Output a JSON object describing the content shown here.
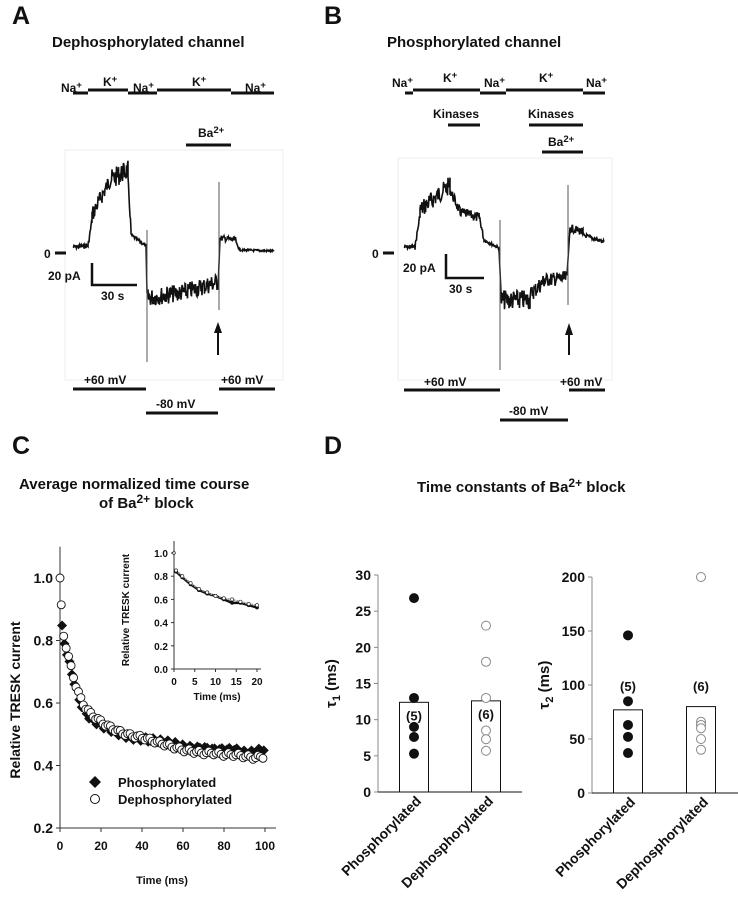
{
  "panels": {
    "A": {
      "letter": "A",
      "title": "Dephosphorylated channel",
      "solutions": [
        "Na+",
        "K+",
        "Na+",
        "K+",
        "Na+"
      ],
      "blocker": "Ba2+",
      "zero_label": "0",
      "scale_current": "20 pA",
      "scale_time": "30 s",
      "voltages": [
        "+60 mV",
        "-80 mV",
        "+60 mV"
      ]
    },
    "B": {
      "letter": "B",
      "title": "Phosphorylated channel",
      "solutions": [
        "Na+",
        "K+",
        "Na+",
        "K+",
        "Na+"
      ],
      "kinases": [
        "Kinases",
        "Kinases"
      ],
      "blocker": "Ba2+",
      "zero_label": "0",
      "scale_current": "20 pA",
      "scale_time": "30 s",
      "voltages": [
        "+60 mV",
        "-80 mV",
        "+60 mV"
      ]
    },
    "C": {
      "letter": "C"
    },
    "D": {
      "letter": "D",
      "title": "Time constants of Ba2+ block"
    }
  },
  "chart_data": [
    {
      "id": "C-main",
      "type": "scatter",
      "title": "Average normalized time course of Ba2+ block",
      "xlabel": "Time (ms)",
      "ylabel": "Relative TRESK current",
      "xlim": [
        0,
        100
      ],
      "ylim": [
        0.2,
        1.1
      ],
      "xticks": [
        0,
        20,
        40,
        60,
        80,
        100
      ],
      "yticks": [
        0.2,
        0.4,
        0.6,
        0.8,
        1.0
      ],
      "ytick_labels": [
        "0.2",
        "0.4",
        "0.6",
        "0.8",
        "1.0"
      ],
      "legend": {
        "position": "bottom-left",
        "entries": [
          "Phosphorylated",
          "Dephosphorylated"
        ]
      },
      "series": [
        {
          "name": "Phosphorylated",
          "marker": "filled-diamond",
          "x": [
            0,
            1,
            2,
            4,
            6,
            8,
            10,
            12,
            15,
            20,
            25,
            30,
            35,
            40,
            45,
            50,
            55,
            60,
            65,
            70,
            75,
            80,
            85,
            90,
            95,
            100
          ],
          "y": [
            1.0,
            0.84,
            0.8,
            0.74,
            0.69,
            0.64,
            0.6,
            0.575,
            0.55,
            0.53,
            0.515,
            0.5,
            0.49,
            0.485,
            0.48,
            0.475,
            0.47,
            0.46,
            0.455,
            0.455,
            0.45,
            0.45,
            0.45,
            0.44,
            0.44,
            0.455
          ]
        },
        {
          "name": "Dephosphorylated",
          "marker": "open-circle",
          "x": [
            0,
            1,
            2,
            4,
            6,
            8,
            10,
            12,
            15,
            20,
            25,
            30,
            35,
            40,
            45,
            50,
            55,
            60,
            65,
            70,
            75,
            80,
            85,
            90,
            95,
            100
          ],
          "y": [
            1.0,
            0.85,
            0.81,
            0.75,
            0.7,
            0.65,
            0.615,
            0.59,
            0.565,
            0.54,
            0.52,
            0.505,
            0.495,
            0.49,
            0.48,
            0.47,
            0.46,
            0.45,
            0.445,
            0.44,
            0.44,
            0.435,
            0.435,
            0.43,
            0.425,
            0.43
          ]
        }
      ]
    },
    {
      "id": "C-inset",
      "type": "scatter",
      "xlabel": "Time (ms)",
      "ylabel": "Relative TRESK current",
      "xlim": [
        0,
        20
      ],
      "ylim": [
        0,
        1.0
      ],
      "xticks": [
        0,
        5,
        10,
        15,
        20
      ],
      "yticks": [
        0.0,
        0.2,
        0.4,
        0.6,
        0.8,
        1.0
      ],
      "ytick_labels": [
        "0.0",
        "0.2",
        "0.4",
        "0.6",
        "0.8",
        "1.0"
      ],
      "series": [
        {
          "name": "Phosphorylated",
          "x": [
            0,
            0.5,
            2,
            4,
            6,
            8,
            10,
            12,
            14,
            16,
            18,
            20
          ],
          "y": [
            1.0,
            0.84,
            0.79,
            0.73,
            0.68,
            0.65,
            0.63,
            0.6,
            0.57,
            0.57,
            0.55,
            0.53
          ]
        },
        {
          "name": "Dephosphorylated",
          "x": [
            0,
            0.5,
            2,
            4,
            6,
            8,
            10,
            12,
            14,
            16,
            18,
            20
          ],
          "y": [
            1.0,
            0.85,
            0.8,
            0.74,
            0.69,
            0.66,
            0.63,
            0.61,
            0.6,
            0.58,
            0.56,
            0.55
          ]
        }
      ]
    },
    {
      "id": "D-tau1",
      "type": "bar",
      "ylabel": "τ1 (ms)",
      "ylim": [
        0,
        30
      ],
      "yticks": [
        0,
        5,
        10,
        15,
        20,
        25,
        30
      ],
      "categories": [
        "Phosphorylated",
        "Dephosphorylated"
      ],
      "values": [
        12.4,
        12.6
      ],
      "n_labels": [
        "(5)",
        "(6)"
      ],
      "points": [
        {
          "category": "Phosphorylated",
          "marker": "filled-circle",
          "values": [
            26.8,
            13.0,
            9.0,
            7.6,
            5.3
          ]
        },
        {
          "category": "Dephosphorylated",
          "marker": "open-circle",
          "values": [
            23.0,
            18.0,
            13.0,
            8.5,
            7.3,
            5.7
          ]
        }
      ]
    },
    {
      "id": "D-tau2",
      "type": "bar",
      "ylabel": "τ2 (ms)",
      "ylim": [
        0,
        200
      ],
      "yticks": [
        0,
        50,
        100,
        150,
        200
      ],
      "categories": [
        "Phosphorylated",
        "Dephosphorylated"
      ],
      "values": [
        77,
        80
      ],
      "n_labels": [
        "(5)",
        "(6)"
      ],
      "points": [
        {
          "category": "Phosphorylated",
          "marker": "filled-circle",
          "values": [
            146,
            85,
            63,
            52,
            37
          ]
        },
        {
          "category": "Dephosphorylated",
          "marker": "open-circle",
          "values": [
            200,
            66,
            63,
            60,
            50,
            40
          ]
        }
      ]
    }
  ]
}
